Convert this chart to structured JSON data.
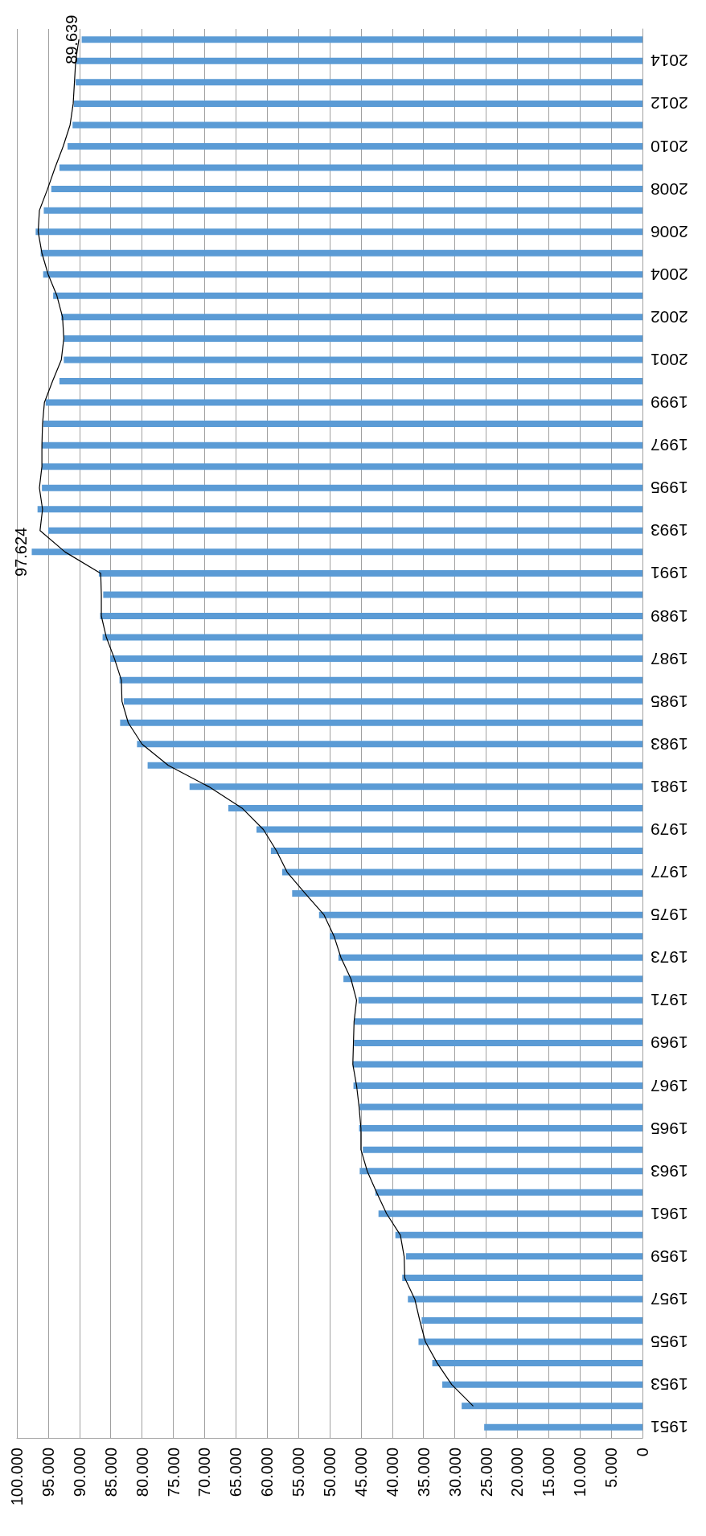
{
  "chart_data": {
    "type": "bar",
    "orientation": "horizontal",
    "categories": [
      null,
      "2014",
      null,
      "2012",
      null,
      "2010",
      null,
      "2008",
      null,
      "2006",
      null,
      "2004",
      null,
      "2002",
      null,
      "2001",
      null,
      "1999",
      null,
      "1997",
      null,
      "1995",
      null,
      "1993",
      null,
      "1991",
      null,
      "1989",
      null,
      "1987",
      null,
      "1985",
      null,
      "1983",
      null,
      "1981",
      null,
      "1979",
      null,
      "1977",
      null,
      "1975",
      null,
      "1973",
      null,
      "1971",
      null,
      "1969",
      null,
      "1967",
      null,
      "1965",
      null,
      "1963",
      null,
      "1961",
      null,
      "1959",
      null,
      "1957",
      null,
      "1955",
      null,
      "1953",
      null,
      "1951"
    ],
    "series": [
      {
        "type": "bar",
        "color": "#5b9bd5",
        "values": [
          89639,
          90500,
          90600,
          90900,
          91100,
          91900,
          93200,
          94500,
          95700,
          97000,
          96200,
          95800,
          94200,
          92900,
          92500,
          92500,
          93200,
          95400,
          95800,
          96000,
          96000,
          96000,
          96700,
          95000,
          97624,
          86900,
          86200,
          86700,
          86300,
          85100,
          83600,
          82900,
          83500,
          80800,
          79100,
          72400,
          66200,
          61700,
          59400,
          57600,
          56000,
          51700,
          50000,
          48600,
          47800,
          45400,
          46000,
          46100,
          46300,
          46200,
          45200,
          45300,
          44700,
          45200,
          42700,
          42200,
          39500,
          37800,
          38400,
          37500,
          35300,
          35800,
          33600,
          32000,
          28900,
          25300
        ],
        "value_labels": [
          "89.639",
          null,
          null,
          null,
          null,
          null,
          null,
          null,
          null,
          null,
          null,
          null,
          null,
          null,
          null,
          null,
          null,
          null,
          null,
          null,
          null,
          null,
          null,
          null,
          "97.624",
          null,
          null,
          null,
          null,
          null,
          null,
          null,
          null,
          null,
          null,
          null,
          null,
          null,
          null,
          null,
          null,
          null,
          null,
          null,
          null,
          null,
          null,
          null,
          null,
          null,
          null,
          null,
          null,
          null,
          null,
          null,
          null,
          null,
          null,
          null,
          null,
          null,
          null,
          null,
          null,
          null
        ]
      },
      {
        "type": "line",
        "color": "#000000",
        "values": [
          90100,
          90600,
          90800,
          91000,
          91500,
          92600,
          93900,
          95100,
          96400,
          96600,
          96000,
          95000,
          93600,
          92700,
          92500,
          92900,
          94300,
          95600,
          95900,
          96000,
          96000,
          96400,
          95900,
          96300,
          92300,
          86600,
          86500,
          86500,
          85700,
          84400,
          83300,
          83200,
          82200,
          80000,
          75800,
          69300,
          64000,
          60600,
          58500,
          56800,
          53900,
          50900,
          49300,
          48200,
          46600,
          45700,
          46100,
          46200,
          46300,
          45700,
          45300,
          45000,
          45000,
          44000,
          42500,
          40900,
          38700,
          38100,
          38000,
          36400,
          35600,
          34700,
          32800,
          30500,
          27100,
          null
        ]
      }
    ],
    "xlim": [
      100000,
      0
    ],
    "xticks": [
      0,
      {
        "value": 5000,
        "label": "5.000"
      },
      {
        "value": 10000,
        "label": "10.000"
      },
      {
        "value": 15000,
        "label": "15.000"
      },
      {
        "value": 20000,
        "label": "20.000"
      },
      {
        "value": 25000,
        "label": "25.000"
      },
      {
        "value": 30000,
        "label": "30.000"
      },
      {
        "value": 35000,
        "label": "35.000"
      },
      {
        "value": 40000,
        "label": "40.000"
      },
      {
        "value": 45000,
        "label": "45.000"
      },
      {
        "value": 50000,
        "label": "50.000"
      },
      {
        "value": 55000,
        "label": "55.000"
      },
      {
        "value": 60000,
        "label": "60.000"
      },
      {
        "value": 65000,
        "label": "65.000"
      },
      {
        "value": 70000,
        "label": "70.000"
      },
      {
        "value": 75000,
        "label": "75.000"
      },
      {
        "value": 80000,
        "label": "80.000"
      },
      {
        "value": 85000,
        "label": "85.000"
      },
      {
        "value": 90000,
        "label": "90.000"
      },
      {
        "value": 95000,
        "label": "95.000"
      },
      {
        "value": 100000,
        "label": "100.000"
      }
    ],
    "grid": "x",
    "marker": "none",
    "line_style": "solid"
  }
}
